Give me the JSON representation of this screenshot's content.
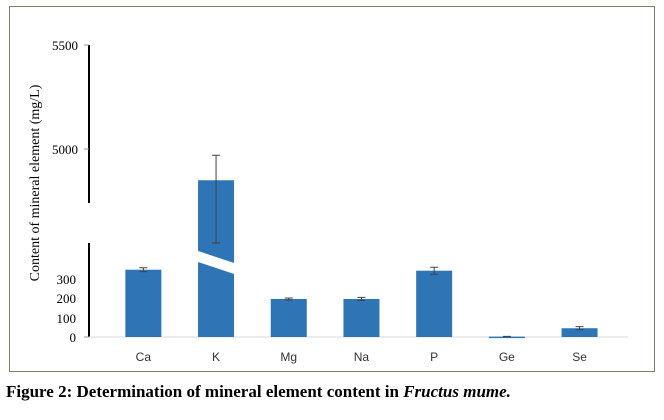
{
  "chart_data": {
    "type": "bar",
    "ylabel": "Content of mineral element (mg/L)",
    "categories": [
      "Ca",
      "K",
      "Mg",
      "Na",
      "P",
      "Ge",
      "Se"
    ],
    "values": [
      345,
      4850,
      195,
      195,
      340,
      2,
      45
    ],
    "errors": [
      10,
      120,
      5,
      8,
      18,
      1,
      8
    ],
    "y_ticks_lower": [
      0,
      100,
      200,
      300
    ],
    "y_ticks_upper": [
      5000,
      5500
    ],
    "y_axis_break": true,
    "grid": false,
    "legend": "none",
    "bar_color": "#2e75b6"
  },
  "caption": {
    "prefix": "Figure 2: Determination of mineral element content in ",
    "italic": "Fructus mume."
  }
}
